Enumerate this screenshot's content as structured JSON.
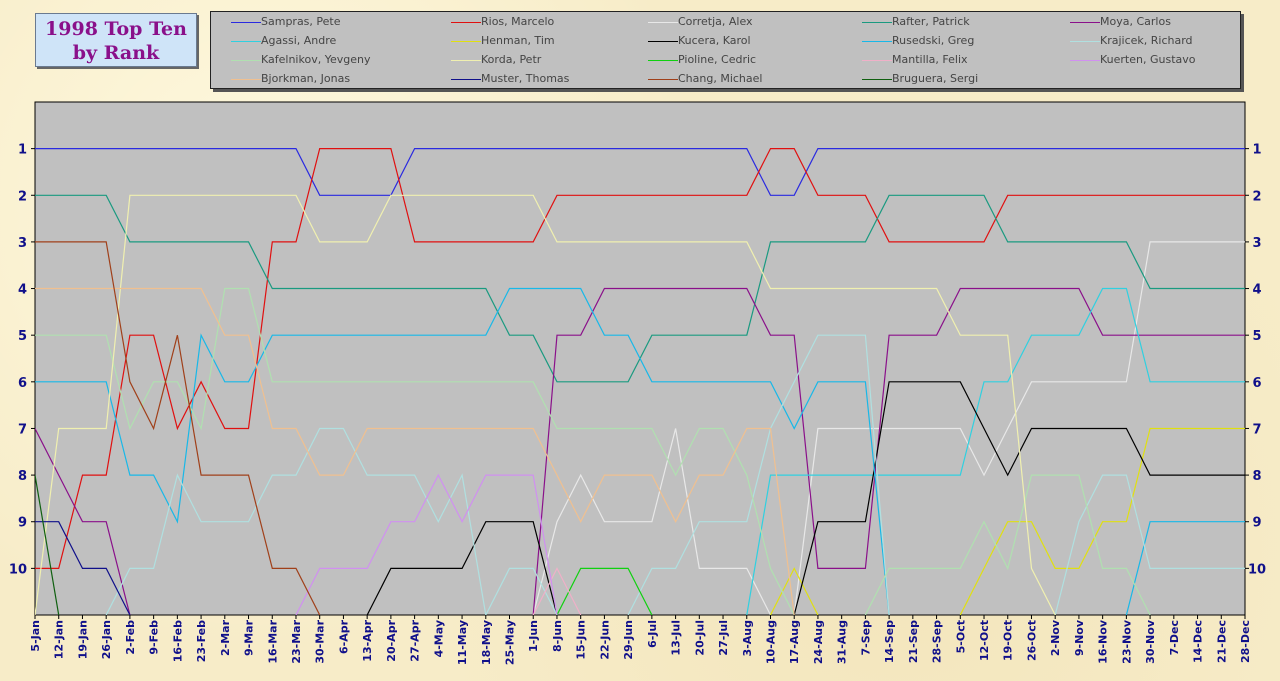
{
  "title_lines": [
    "1998 Top Ten",
    "by Rank"
  ],
  "chart_data": {
    "type": "line",
    "title": "1998 Top Ten by Rank",
    "y_axis": {
      "inverted": true,
      "ylim": [
        11,
        0
      ],
      "ticks": [
        1,
        2,
        3,
        4,
        5,
        6,
        7,
        8,
        9,
        10
      ]
    },
    "x_labels": [
      "5-Jan",
      "12-Jan",
      "19-Jan",
      "26-Jan",
      "2-Feb",
      "9-Feb",
      "16-Feb",
      "23-Feb",
      "2-Mar",
      "9-Mar",
      "16-Mar",
      "23-Mar",
      "30-Mar",
      "6-Apr",
      "13-Apr",
      "20-Apr",
      "27-Apr",
      "4-May",
      "11-May",
      "18-May",
      "25-May",
      "1-Jun",
      "8-Jun",
      "15-Jun",
      "22-Jun",
      "29-Jun",
      "6-Jul",
      "13-Jul",
      "20-Jul",
      "27-Jul",
      "3-Aug",
      "10-Aug",
      "17-Aug",
      "24-Aug",
      "31-Aug",
      "7-Sep",
      "14-Sep",
      "21-Sep",
      "28-Sep",
      "5-Oct",
      "12-Oct",
      "19-Oct",
      "26-Oct",
      "2-Nov",
      "9-Nov",
      "16-Nov",
      "23-Nov",
      "30-Nov",
      "7-Dec",
      "14-Dec",
      "21-Dec",
      "28-Dec"
    ],
    "legend_position": "top",
    "grid": false,
    "series": [
      {
        "name": "Sampras, Pete",
        "color": "#2a2ae0",
        "values": [
          1,
          1,
          1,
          1,
          1,
          1,
          1,
          1,
          1,
          1,
          1,
          1,
          2,
          2,
          2,
          2,
          1,
          1,
          1,
          1,
          1,
          1,
          1,
          1,
          1,
          1,
          1,
          1,
          1,
          1,
          1,
          2,
          2,
          1,
          1,
          1,
          1,
          1,
          1,
          1,
          1,
          1,
          1,
          1,
          1,
          1,
          1,
          1,
          1,
          1,
          1,
          1
        ]
      },
      {
        "name": "Rios, Marcelo",
        "color": "#e01010",
        "values": [
          10,
          10,
          8,
          8,
          5,
          5,
          7,
          6,
          7,
          7,
          3,
          3,
          1,
          1,
          1,
          1,
          3,
          3,
          3,
          3,
          3,
          3,
          2,
          2,
          2,
          2,
          2,
          2,
          2,
          2,
          2,
          1,
          1,
          2,
          2,
          2,
          3,
          3,
          3,
          3,
          3,
          2,
          2,
          2,
          2,
          2,
          2,
          2,
          2,
          2,
          2,
          2
        ]
      },
      {
        "name": "Corretja, Alex",
        "color": "#e8e8e8",
        "values": [
          null,
          null,
          null,
          null,
          null,
          null,
          null,
          null,
          null,
          null,
          null,
          null,
          null,
          null,
          null,
          null,
          null,
          null,
          null,
          null,
          null,
          null,
          9,
          8,
          9,
          9,
          9,
          7,
          10,
          10,
          10,
          null,
          null,
          7,
          7,
          7,
          7,
          7,
          7,
          7,
          8,
          7,
          6,
          6,
          6,
          6,
          6,
          3,
          3,
          3,
          3,
          3
        ]
      },
      {
        "name": "Rafter, Patrick",
        "color": "#1a9a80",
        "values": [
          2,
          2,
          2,
          2,
          3,
          3,
          3,
          3,
          3,
          3,
          4,
          4,
          4,
          4,
          4,
          4,
          4,
          4,
          4,
          4,
          5,
          5,
          6,
          6,
          6,
          6,
          5,
          5,
          5,
          5,
          5,
          3,
          3,
          3,
          3,
          3,
          2,
          2,
          2,
          2,
          2,
          3,
          3,
          3,
          3,
          3,
          3,
          4,
          4,
          4,
          4,
          4
        ]
      },
      {
        "name": "Moya, Carlos",
        "color": "#8a108a",
        "values": [
          7,
          8,
          9,
          9,
          null,
          null,
          null,
          null,
          null,
          null,
          null,
          null,
          null,
          null,
          null,
          null,
          null,
          null,
          null,
          null,
          null,
          null,
          5,
          5,
          4,
          4,
          4,
          4,
          4,
          4,
          4,
          5,
          5,
          10,
          10,
          10,
          5,
          5,
          5,
          4,
          4,
          4,
          4,
          4,
          4,
          5,
          5,
          5,
          5,
          5,
          5,
          5
        ]
      },
      {
        "name": "Agassi, Andre",
        "color": "#30d0e0",
        "values": [
          null,
          null,
          null,
          null,
          null,
          null,
          null,
          null,
          null,
          null,
          null,
          null,
          null,
          null,
          null,
          null,
          null,
          null,
          null,
          null,
          null,
          null,
          null,
          null,
          null,
          null,
          null,
          null,
          null,
          null,
          null,
          8,
          8,
          8,
          8,
          8,
          8,
          8,
          8,
          8,
          6,
          6,
          5,
          5,
          5,
          4,
          4,
          6,
          6,
          6,
          6,
          6
        ]
      },
      {
        "name": "Henman, Tim",
        "color": "#e0e010",
        "values": [
          null,
          null,
          null,
          null,
          null,
          null,
          null,
          null,
          null,
          null,
          null,
          null,
          null,
          null,
          null,
          null,
          null,
          null,
          null,
          null,
          null,
          null,
          null,
          null,
          null,
          null,
          null,
          null,
          null,
          null,
          null,
          null,
          10,
          null,
          null,
          null,
          null,
          null,
          null,
          null,
          10,
          9,
          9,
          10,
          10,
          9,
          9,
          7,
          7,
          7,
          7,
          7
        ]
      },
      {
        "name": "Kucera, Karol",
        "color": "#000000",
        "values": [
          null,
          null,
          null,
          null,
          null,
          null,
          null,
          null,
          null,
          null,
          null,
          null,
          null,
          null,
          null,
          10,
          10,
          10,
          10,
          9,
          9,
          9,
          null,
          null,
          null,
          null,
          null,
          null,
          null,
          null,
          null,
          null,
          null,
          9,
          9,
          9,
          6,
          6,
          6,
          6,
          7,
          8,
          7,
          7,
          7,
          7,
          7,
          8,
          8,
          8,
          8,
          8
        ]
      },
      {
        "name": "Rusedski, Greg",
        "color": "#18b8e8",
        "values": [
          6,
          6,
          6,
          6,
          8,
          8,
          9,
          5,
          6,
          6,
          5,
          5,
          5,
          5,
          5,
          5,
          5,
          5,
          5,
          5,
          4,
          4,
          4,
          4,
          5,
          5,
          6,
          6,
          6,
          6,
          6,
          6,
          7,
          6,
          6,
          6,
          null,
          null,
          null,
          null,
          null,
          null,
          null,
          null,
          null,
          null,
          null,
          9,
          9,
          9,
          9,
          9
        ]
      },
      {
        "name": "Krajicek, Richard",
        "color": "#b0e0e0",
        "values": [
          null,
          null,
          null,
          null,
          10,
          10,
          8,
          9,
          9,
          9,
          8,
          8,
          7,
          7,
          8,
          8,
          8,
          9,
          8,
          null,
          10,
          10,
          null,
          null,
          null,
          null,
          10,
          10,
          9,
          9,
          9,
          7,
          6,
          5,
          5,
          5,
          null,
          null,
          null,
          null,
          null,
          null,
          null,
          null,
          9,
          8,
          8,
          10,
          10,
          10,
          10,
          10
        ]
      },
      {
        "name": "Kafelnikov, Yevgeny",
        "color": "#b0e0b0",
        "values": [
          5,
          5,
          5,
          5,
          7,
          6,
          6,
          7,
          4,
          4,
          6,
          6,
          6,
          6,
          6,
          6,
          6,
          6,
          6,
          6,
          6,
          6,
          7,
          7,
          7,
          7,
          7,
          8,
          7,
          7,
          8,
          10,
          null,
          null,
          null,
          null,
          10,
          10,
          10,
          10,
          9,
          10,
          8,
          8,
          8,
          10,
          10,
          null,
          null,
          null,
          null,
          null
        ]
      },
      {
        "name": "Korda, Petr",
        "color": "#f0f0b0",
        "values": [
          null,
          7,
          7,
          7,
          2,
          2,
          2,
          2,
          2,
          2,
          2,
          2,
          3,
          3,
          3,
          2,
          2,
          2,
          2,
          2,
          2,
          2,
          3,
          3,
          3,
          3,
          3,
          3,
          3,
          3,
          3,
          4,
          4,
          4,
          4,
          4,
          4,
          4,
          4,
          5,
          5,
          5,
          10,
          null,
          null,
          null,
          null,
          null,
          null,
          null,
          null,
          null
        ]
      },
      {
        "name": "Pioline, Cedric",
        "color": "#10d010",
        "values": [
          null,
          null,
          null,
          null,
          null,
          null,
          null,
          null,
          null,
          null,
          null,
          null,
          null,
          null,
          null,
          null,
          null,
          null,
          null,
          null,
          null,
          null,
          null,
          10,
          10,
          10,
          null,
          null,
          null,
          null,
          null,
          null,
          null,
          null,
          null,
          null,
          null,
          null,
          null,
          null,
          null,
          null,
          null,
          null,
          null,
          null,
          null,
          null,
          null,
          null,
          null,
          null
        ]
      },
      {
        "name": "Mantilla, Felix",
        "color": "#f0b0c8",
        "values": [
          null,
          null,
          null,
          null,
          null,
          null,
          null,
          null,
          null,
          null,
          null,
          null,
          null,
          null,
          null,
          null,
          null,
          null,
          null,
          null,
          null,
          null,
          10,
          null,
          null,
          null,
          null,
          null,
          null,
          null,
          null,
          null,
          null,
          null,
          null,
          null,
          null,
          null,
          null,
          null,
          null,
          null,
          null,
          null,
          null,
          null,
          null,
          null,
          null,
          null,
          null,
          null
        ]
      },
      {
        "name": "Kuerten, Gustavo",
        "color": "#d090f0",
        "values": [
          null,
          null,
          null,
          null,
          null,
          null,
          null,
          null,
          null,
          null,
          null,
          null,
          10,
          10,
          10,
          9,
          9,
          8,
          9,
          8,
          8,
          8,
          null,
          null,
          null,
          null,
          null,
          null,
          null,
          null,
          null,
          null,
          null,
          null,
          null,
          null,
          null,
          null,
          null,
          null,
          null,
          null,
          null,
          null,
          null,
          null,
          null,
          null,
          null,
          null,
          null,
          null
        ]
      },
      {
        "name": "Bjorkman, Jonas",
        "color": "#f0c090",
        "values": [
          4,
          4,
          4,
          4,
          4,
          4,
          4,
          4,
          5,
          5,
          7,
          7,
          8,
          8,
          7,
          7,
          7,
          7,
          7,
          7,
          7,
          7,
          8,
          9,
          8,
          8,
          8,
          9,
          8,
          8,
          7,
          7,
          null,
          null,
          null,
          null,
          null,
          null,
          null,
          null,
          null,
          null,
          null,
          null,
          null,
          null,
          null,
          null,
          null,
          null,
          null,
          null
        ]
      },
      {
        "name": "Muster, Thomas",
        "color": "#10108a",
        "values": [
          9,
          9,
          10,
          10,
          null,
          null,
          null,
          null,
          null,
          null,
          null,
          null,
          null,
          null,
          null,
          null,
          null,
          null,
          null,
          null,
          null,
          null,
          null,
          null,
          null,
          null,
          null,
          null,
          null,
          null,
          null,
          null,
          null,
          null,
          null,
          null,
          null,
          null,
          null,
          null,
          null,
          null,
          null,
          null,
          null,
          null,
          null,
          null,
          null,
          null,
          null,
          null
        ]
      },
      {
        "name": "Chang, Michael",
        "color": "#a0401a",
        "values": [
          3,
          3,
          3,
          3,
          6,
          7,
          5,
          8,
          8,
          8,
          10,
          10,
          null,
          null,
          null,
          null,
          null,
          null,
          null,
          null,
          null,
          null,
          null,
          null,
          null,
          null,
          null,
          null,
          null,
          null,
          null,
          null,
          null,
          null,
          null,
          null,
          null,
          null,
          null,
          null,
          null,
          null,
          null,
          null,
          null,
          null,
          null,
          null,
          null,
          null,
          null,
          null
        ]
      },
      {
        "name": "Bruguera, Sergi",
        "color": "#106010",
        "values": [
          8,
          null,
          null,
          null,
          null,
          null,
          null,
          null,
          null,
          null,
          null,
          null,
          null,
          null,
          null,
          null,
          null,
          null,
          null,
          null,
          null,
          null,
          null,
          null,
          null,
          null,
          null,
          null,
          null,
          null,
          null,
          null,
          null,
          null,
          null,
          null,
          null,
          null,
          null,
          null,
          null,
          null,
          null,
          null,
          null,
          null,
          null,
          null,
          null,
          null,
          null,
          null
        ]
      }
    ]
  }
}
